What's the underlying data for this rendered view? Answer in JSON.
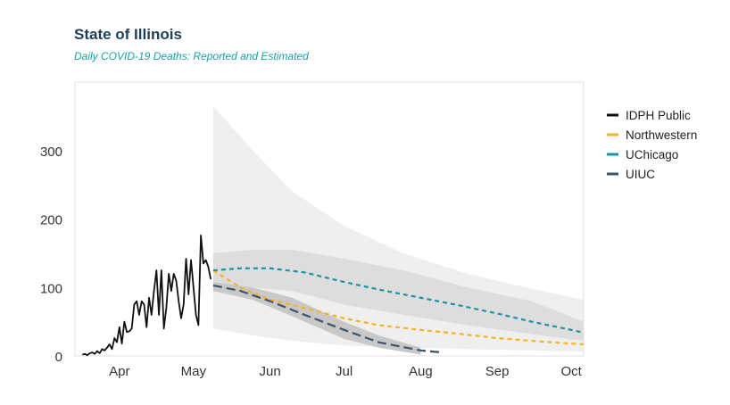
{
  "header": {
    "title": "State of Illinois",
    "subtitle": "Daily COVID-19 Deaths: Reported and Estimated"
  },
  "chart_data": {
    "type": "line",
    "title": "State of Illinois",
    "subtitle": "Daily COVID-19 Deaths: Reported and Estimated",
    "xlabel": "",
    "ylabel": "",
    "x_type": "date",
    "xlim": [
      "2020-03-14",
      "2020-10-06"
    ],
    "ylim": [
      0,
      400
    ],
    "x_ticks": [
      {
        "date": "2020-04-01",
        "label": "Apr"
      },
      {
        "date": "2020-05-01",
        "label": "May"
      },
      {
        "date": "2020-06-01",
        "label": "Jun"
      },
      {
        "date": "2020-07-01",
        "label": "Jul"
      },
      {
        "date": "2020-08-01",
        "label": "Aug"
      },
      {
        "date": "2020-09-01",
        "label": "Sep"
      },
      {
        "date": "2020-10-01",
        "label": "Oct"
      }
    ],
    "y_ticks": [
      0,
      100,
      200,
      300
    ],
    "grid": false,
    "legend": "right",
    "series": [
      {
        "name": "IDPH Public",
        "color": "#111111",
        "style": "solid",
        "points": [
          [
            "2020-03-17",
            2
          ],
          [
            "2020-03-18",
            3
          ],
          [
            "2020-03-19",
            1
          ],
          [
            "2020-03-20",
            4
          ],
          [
            "2020-03-21",
            5
          ],
          [
            "2020-03-22",
            3
          ],
          [
            "2020-03-23",
            7
          ],
          [
            "2020-03-24",
            4
          ],
          [
            "2020-03-25",
            10
          ],
          [
            "2020-03-26",
            8
          ],
          [
            "2020-03-27",
            12
          ],
          [
            "2020-03-28",
            17
          ],
          [
            "2020-03-29",
            10
          ],
          [
            "2020-03-30",
            26
          ],
          [
            "2020-03-31",
            20
          ],
          [
            "2020-04-01",
            42
          ],
          [
            "2020-04-02",
            18
          ],
          [
            "2020-04-03",
            50
          ],
          [
            "2020-04-04",
            35
          ],
          [
            "2020-04-05",
            36
          ],
          [
            "2020-04-06",
            40
          ],
          [
            "2020-04-07",
            75
          ],
          [
            "2020-04-08",
            80
          ],
          [
            "2020-04-09",
            60
          ],
          [
            "2020-04-10",
            80
          ],
          [
            "2020-04-11",
            75
          ],
          [
            "2020-04-12",
            42
          ],
          [
            "2020-04-13",
            85
          ],
          [
            "2020-04-14",
            60
          ],
          [
            "2020-04-15",
            95
          ],
          [
            "2020-04-16",
            125
          ],
          [
            "2020-04-17",
            60
          ],
          [
            "2020-04-18",
            125
          ],
          [
            "2020-04-19",
            40
          ],
          [
            "2020-04-20",
            70
          ],
          [
            "2020-04-21",
            120
          ],
          [
            "2020-04-22",
            95
          ],
          [
            "2020-04-23",
            120
          ],
          [
            "2020-04-24",
            110
          ],
          [
            "2020-04-25",
            80
          ],
          [
            "2020-04-26",
            55
          ],
          [
            "2020-04-27",
            75
          ],
          [
            "2020-04-28",
            142
          ],
          [
            "2020-04-29",
            90
          ],
          [
            "2020-04-30",
            140
          ],
          [
            "2020-05-01",
            100
          ],
          [
            "2020-05-02",
            60
          ],
          [
            "2020-05-03",
            45
          ],
          [
            "2020-05-04",
            176
          ],
          [
            "2020-05-05",
            135
          ],
          [
            "2020-05-06",
            140
          ],
          [
            "2020-05-07",
            130
          ],
          [
            "2020-05-08",
            112
          ]
        ]
      },
      {
        "name": "Northwestern",
        "color": "#f5b324",
        "style": "dashed",
        "points": [
          [
            "2020-05-09",
            125
          ],
          [
            "2020-05-20",
            100
          ],
          [
            "2020-06-01",
            82
          ],
          [
            "2020-06-15",
            70
          ],
          [
            "2020-07-01",
            55
          ],
          [
            "2020-07-15",
            45
          ],
          [
            "2020-08-01",
            38
          ],
          [
            "2020-08-15",
            33
          ],
          [
            "2020-09-01",
            26
          ],
          [
            "2020-09-15",
            22
          ],
          [
            "2020-10-01",
            18
          ],
          [
            "2020-10-06",
            17
          ]
        ]
      },
      {
        "name": "UChicago",
        "color": "#1a93a5",
        "style": "dashed",
        "points": [
          [
            "2020-05-09",
            125
          ],
          [
            "2020-05-20",
            128
          ],
          [
            "2020-06-01",
            128
          ],
          [
            "2020-06-15",
            122
          ],
          [
            "2020-07-01",
            108
          ],
          [
            "2020-07-15",
            97
          ],
          [
            "2020-08-01",
            85
          ],
          [
            "2020-08-15",
            75
          ],
          [
            "2020-09-01",
            62
          ],
          [
            "2020-09-15",
            50
          ],
          [
            "2020-10-01",
            38
          ],
          [
            "2020-10-06",
            34
          ]
        ]
      },
      {
        "name": "UIUC",
        "color": "#3e5468",
        "style": "dashed",
        "points": [
          [
            "2020-05-09",
            103
          ],
          [
            "2020-05-20",
            95
          ],
          [
            "2020-06-01",
            80
          ],
          [
            "2020-06-15",
            60
          ],
          [
            "2020-07-01",
            38
          ],
          [
            "2020-07-15",
            20
          ],
          [
            "2020-08-01",
            8
          ],
          [
            "2020-08-10",
            5
          ]
        ]
      }
    ],
    "bands": [
      {
        "name": "outer-interval",
        "color": "#efefef",
        "x": [
          "2020-05-09",
          "2020-05-25",
          "2020-06-10",
          "2020-07-01",
          "2020-07-25",
          "2020-08-20",
          "2020-09-15",
          "2020-10-06"
        ],
        "lower": [
          40,
          30,
          22,
          15,
          12,
          10,
          8,
          6
        ],
        "upper": [
          365,
          300,
          240,
          190,
          150,
          120,
          98,
          82
        ]
      },
      {
        "name": "middle-interval",
        "color": "#dddddd",
        "x": [
          "2020-05-09",
          "2020-05-25",
          "2020-06-10",
          "2020-07-01",
          "2020-07-25",
          "2020-08-20",
          "2020-09-15",
          "2020-10-06"
        ],
        "lower": [
          100,
          100,
          95,
          75,
          60,
          45,
          32,
          22
        ],
        "upper": [
          150,
          155,
          155,
          142,
          125,
          100,
          80,
          50
        ]
      },
      {
        "name": "inner-interval",
        "color": "#c8c8c8",
        "x": [
          "2020-05-09",
          "2020-05-25",
          "2020-06-10",
          "2020-07-01",
          "2020-07-15",
          "2020-08-01"
        ],
        "lower": [
          95,
          82,
          58,
          25,
          12,
          2
        ],
        "upper": [
          108,
          100,
          85,
          50,
          30,
          12
        ]
      }
    ]
  }
}
